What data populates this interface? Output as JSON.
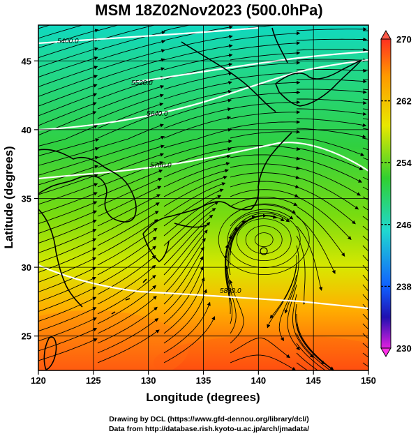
{
  "title": "MSM 18Z02Nov2023 (500.0hPa)",
  "map": {
    "x_axis": {
      "label": "Longitude (degrees)",
      "range": [
        120,
        150
      ],
      "ticks": [
        "120",
        "125",
        "130",
        "135",
        "140",
        "145",
        "150"
      ]
    },
    "y_axis": {
      "label": "Latitude  (degrees)",
      "range": [
        22.5,
        47.6
      ],
      "ticks": [
        "25",
        "30",
        "35",
        "40",
        "45"
      ]
    },
    "grid": true,
    "field": "temperature (K) shaded, geopotential height contours, wind streamlines",
    "contour_labels": [
      "5400.0",
      "5520.0",
      "5640.0",
      "5760.0",
      "5880.0"
    ]
  },
  "colorbar": {
    "ticks": [
      "270",
      "262",
      "254",
      "246",
      "238",
      "230"
    ],
    "colors": [
      "#ff3020",
      "#ff9900",
      "#e8e800",
      "#30d030",
      "#20d8d0",
      "#1060ff",
      "#2010b0",
      "#e020e0"
    ]
  },
  "credits": {
    "line1": "Drawing by DCL (https://www.gfd-dennou.org/library/dcl/)",
    "line2": "Data from http://database.rish.kyoto-u.ac.jp/arch/jmadata/"
  }
}
